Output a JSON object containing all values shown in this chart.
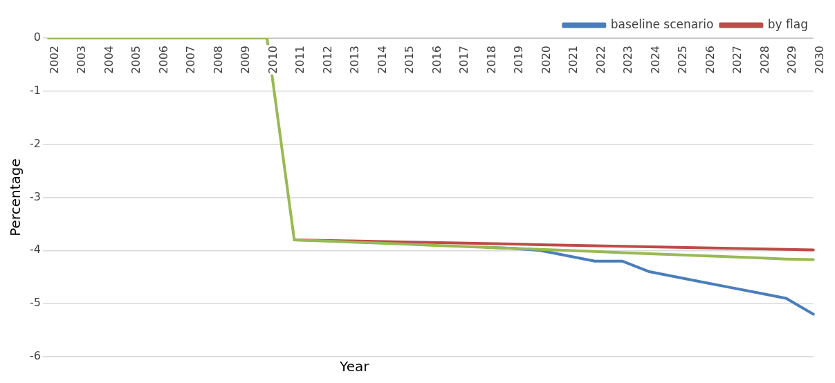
{
  "chart_data": {
    "type": "line",
    "xlabel": "Year",
    "ylabel": "Percentage",
    "categories": [
      "2002",
      "2003",
      "2004",
      "2005",
      "2006",
      "2007",
      "2008",
      "2009",
      "2010",
      "2011",
      "2012",
      "2013",
      "2014",
      "2015",
      "2016",
      "2017",
      "2018",
      "2019",
      "2020",
      "2021",
      "2022",
      "2023",
      "2024",
      "2025",
      "2026",
      "2027",
      "2028",
      "2029",
      "2030"
    ],
    "series": [
      {
        "name": "baseline scenario",
        "color": "#4a7ebb",
        "values": [
          null,
          null,
          null,
          null,
          null,
          null,
          null,
          null,
          null,
          null,
          null,
          null,
          null,
          null,
          null,
          null,
          -3.94,
          -3.96,
          -4.0,
          -4.1,
          -4.2,
          -4.2,
          -4.4,
          -4.5,
          -4.6,
          -4.7,
          -4.8,
          -4.9,
          -5.2
        ]
      },
      {
        "name": "by flag",
        "color": "#be4b48",
        "values": [
          null,
          null,
          null,
          null,
          null,
          null,
          null,
          null,
          null,
          -3.8,
          -3.81,
          -3.82,
          -3.83,
          -3.84,
          -3.85,
          -3.86,
          -3.87,
          -3.88,
          -3.89,
          -3.9,
          -3.91,
          -3.92,
          -3.93,
          -3.94,
          -3.95,
          -3.96,
          -3.97,
          -3.98,
          -3.99
        ]
      },
      {
        "color": "#98b954",
        "values": [
          0,
          0,
          0,
          0,
          0,
          0,
          0,
          0,
          0,
          -3.8,
          -3.82,
          -3.84,
          -3.86,
          -3.88,
          -3.9,
          -3.92,
          -3.94,
          -3.96,
          -3.98,
          -4.0,
          -4.02,
          -4.04,
          -4.06,
          -4.08,
          -4.1,
          -4.12,
          -4.14,
          -4.16,
          -4.17
        ]
      }
    ],
    "ylim": [
      -6,
      0
    ],
    "yticks": [
      -6,
      -5,
      -4,
      -3,
      -2,
      -1,
      0
    ],
    "grid": "y",
    "legend": "top right",
    "marker": "none",
    "line_style": "solid"
  }
}
